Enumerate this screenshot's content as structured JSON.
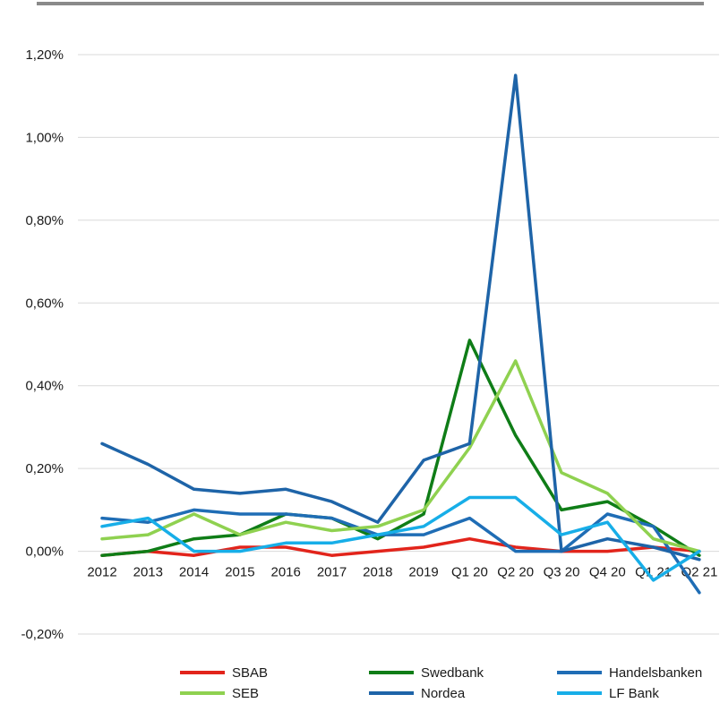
{
  "chart_data": {
    "type": "line",
    "categories": [
      "2012",
      "2013",
      "2014",
      "2015",
      "2016",
      "2017",
      "2018",
      "2019",
      "Q1 20",
      "Q2 20",
      "Q3 20",
      "Q4 20",
      "Q1 21",
      "Q2 21"
    ],
    "y_ticks": [
      "-0,20%",
      "0,00%",
      "0,20%",
      "0,40%",
      "0,60%",
      "0,80%",
      "1,00%",
      "1,20%"
    ],
    "ylim": [
      -0.2,
      1.2
    ],
    "y_unit": "%",
    "grid": true,
    "legend_position": "bottom",
    "series": [
      {
        "name": "SBAB",
        "color": "#e2241b",
        "values": [
          -0.01,
          0.0,
          -0.01,
          0.01,
          0.01,
          -0.01,
          0.0,
          0.01,
          0.03,
          0.01,
          0.0,
          0.0,
          0.01,
          0.0
        ]
      },
      {
        "name": "Swedbank",
        "color": "#0f7d17",
        "values": [
          -0.01,
          0.0,
          0.03,
          0.04,
          0.09,
          0.08,
          0.03,
          0.09,
          0.51,
          0.28,
          0.1,
          0.12,
          0.06,
          -0.01
        ]
      },
      {
        "name": "Handelsbanken",
        "color": "#1f6db5",
        "values": [
          0.08,
          0.07,
          0.1,
          0.09,
          0.09,
          0.08,
          0.04,
          0.04,
          0.08,
          0.0,
          0.0,
          0.09,
          0.06,
          -0.1
        ]
      },
      {
        "name": "SEB",
        "color": "#8fd150",
        "values": [
          0.03,
          0.04,
          0.09,
          0.04,
          0.07,
          0.05,
          0.06,
          0.1,
          0.25,
          0.46,
          0.19,
          0.14,
          0.03,
          0.0
        ]
      },
      {
        "name": "Nordea",
        "color": "#1e64a8",
        "values": [
          0.26,
          0.21,
          0.15,
          0.14,
          0.15,
          0.12,
          0.07,
          0.22,
          0.26,
          1.15,
          0.0,
          0.03,
          0.01,
          -0.02
        ]
      },
      {
        "name": "LF Bank",
        "color": "#17aee8",
        "values": [
          0.06,
          0.08,
          0.0,
          0.0,
          0.02,
          0.02,
          0.04,
          0.06,
          0.13,
          0.13,
          0.04,
          0.07,
          -0.07,
          0.0
        ]
      }
    ]
  }
}
